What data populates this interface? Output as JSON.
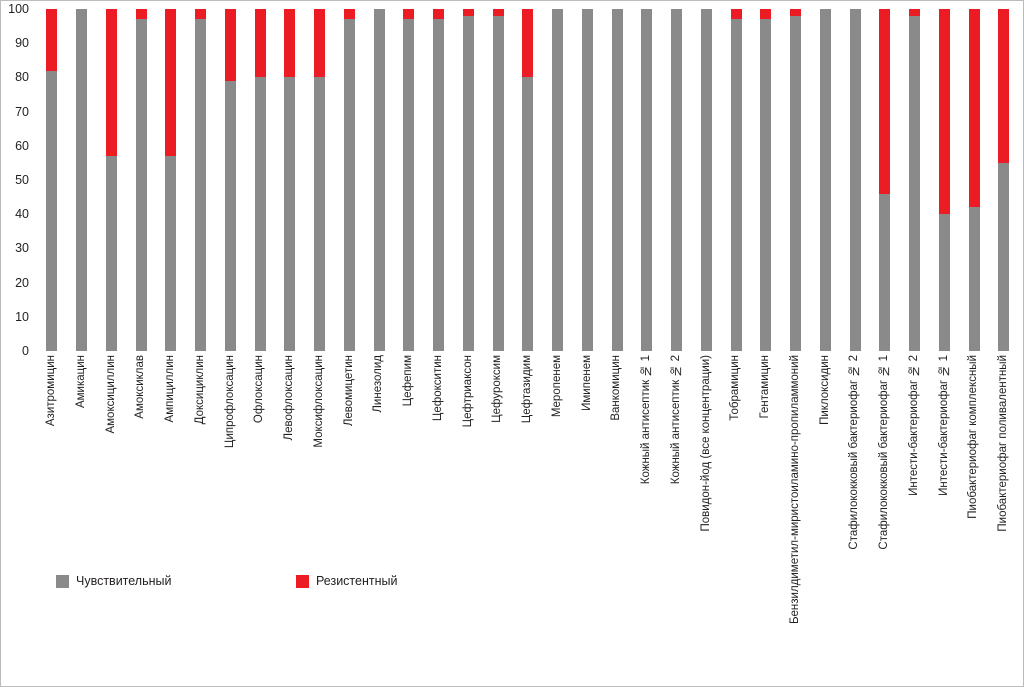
{
  "chart_data": {
    "type": "bar",
    "stacked": true,
    "title": "",
    "xlabel": "",
    "ylabel": "",
    "ylim": [
      0,
      100
    ],
    "yticks": [
      0,
      10,
      20,
      30,
      40,
      50,
      60,
      70,
      80,
      90,
      100
    ],
    "grid": false,
    "legend_position": "bottom-left",
    "categories": [
      "Азитромицин",
      "Амикацин",
      "Амоксициллин",
      "Амоксиклав",
      "Ампициллин",
      "Доксициклин",
      "Ципрофлоксацин",
      "Офлоксацин",
      "Левофлоксацин",
      "Моксифлоксацин",
      "Левомицетин",
      "Линезолид",
      "Цефепим",
      "Цефокситин",
      "Цефтриаксон",
      "Цефуроксим",
      "Цефтазидим",
      "Меропенем",
      "Имипенем",
      "Ванкомицин",
      "Кожный антисептик № 1",
      "Кожный антисептик № 2",
      "Повидон-йод (все концентрации)",
      "Тобрамицин",
      "Гентамицин",
      "Бензилдиметил-миристоиламино-пропиламмоний",
      "Пиклоксидин",
      "Стафилококковый бактериофаг № 2",
      "Стафилококковый бактериофаг № 1",
      "Интести-бактериофаг № 2",
      "Интести-бактериофаг № 1",
      "Пиобактериофаг комплексный",
      "Пиобактериофаг поливалентный"
    ],
    "series": [
      {
        "name": "Чувствительный",
        "color": "#8a8a8a",
        "values": [
          82,
          100,
          57,
          97,
          57,
          97,
          79,
          80,
          80,
          80,
          97,
          100,
          97,
          97,
          98,
          98,
          80,
          100,
          100,
          100,
          100,
          100,
          100,
          97,
          97,
          98,
          100,
          100,
          46,
          98,
          40,
          42,
          55
        ]
      },
      {
        "name": "Резистентный",
        "color": "#ec1c24",
        "values": [
          18,
          0,
          43,
          3,
          43,
          3,
          21,
          20,
          20,
          20,
          3,
          0,
          3,
          3,
          2,
          2,
          20,
          0,
          0,
          0,
          0,
          0,
          0,
          3,
          3,
          2,
          0,
          0,
          54,
          2,
          60,
          58,
          45
        ]
      }
    ]
  },
  "colors": {
    "text": "#231f20",
    "sensitive": "#8a8a8a",
    "resistant": "#ec1c24"
  }
}
